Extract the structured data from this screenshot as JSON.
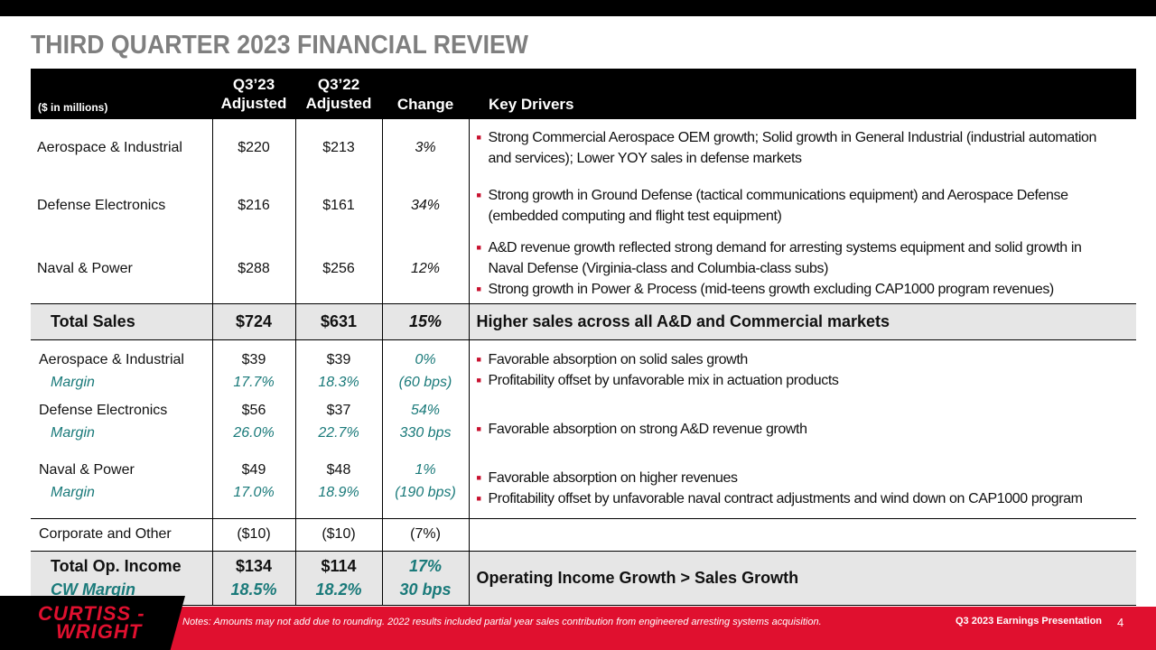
{
  "title": "THIRD QUARTER 2023 FINANCIAL REVIEW",
  "header": {
    "units": "($ in millions)",
    "q3_23_line1": "Q3’23",
    "q3_23_line2": "Adjusted",
    "q3_22_line1": "Q3’22",
    "q3_22_line2": "Adjusted",
    "change": "Change",
    "drivers": "Key Drivers"
  },
  "sales": [
    {
      "segment": "Aerospace & Industrial",
      "q3_23": "$220",
      "q3_22": "$213",
      "change": "3%",
      "drivers": [
        "Strong Commercial Aerospace OEM growth; Solid growth in General Industrial (industrial automation and services); Lower YOY sales in defense markets"
      ]
    },
    {
      "segment": "Defense Electronics",
      "q3_23": "$216",
      "q3_22": "$161",
      "change": "34%",
      "drivers": [
        "Strong growth in Ground Defense (tactical communications equipment) and Aerospace Defense (embedded computing and flight test equipment)"
      ]
    },
    {
      "segment": "Naval & Power",
      "q3_23": "$288",
      "q3_22": "$256",
      "change": "12%",
      "drivers": [
        "A&D revenue growth reflected strong demand for arresting systems equipment and solid growth in Naval Defense (Virginia-class and Columbia-class subs)",
        "Strong growth in Power & Process (mid-teens growth excluding CAP1000 program revenues)"
      ]
    }
  ],
  "total_sales": {
    "label": "Total Sales",
    "q3_23": "$724",
    "q3_22": "$631",
    "change": "15%",
    "driver": "Higher sales across all A&D  and Commercial markets"
  },
  "op_income": [
    {
      "segment": "Aerospace & Industrial",
      "margin_label": "Margin",
      "q3_23": "$39",
      "q3_23_margin": "17.7%",
      "q3_22": "$39",
      "q3_22_margin": "18.3%",
      "change": "0%",
      "change_margin": "(60 bps)",
      "drivers": [
        "Favorable absorption on solid sales growth",
        "Profitability  offset by unfavorable mix in actuation products"
      ]
    },
    {
      "segment": "Defense Electronics",
      "margin_label": "Margin",
      "q3_23": "$56",
      "q3_23_margin": "26.0%",
      "q3_22": "$37",
      "q3_22_margin": "22.7%",
      "change": "54%",
      "change_margin": "330 bps",
      "drivers": [
        "Favorable absorption on strong A&D revenue growth"
      ]
    },
    {
      "segment": "Naval & Power",
      "margin_label": "Margin",
      "q3_23": "$49",
      "q3_23_margin": "17.0%",
      "q3_22": "$48",
      "q3_22_margin": "18.9%",
      "change": "1%",
      "change_margin": "(190 bps)",
      "drivers": [
        "Favorable absorption on higher revenues",
        "Profitability  offset by unfavorable naval contract adjustments and wind down on CAP1000 program"
      ]
    }
  ],
  "corporate": {
    "label": "Corporate and Other",
    "q3_23": "($10)",
    "q3_22": "($10)",
    "change": "(7%)"
  },
  "total_op": {
    "label": "Total Op. Income",
    "margin_label": "CW Margin",
    "q3_23": "$134",
    "q3_23_margin": "18.5%",
    "q3_22": "$114",
    "q3_22_margin": "18.2%",
    "change": "17%",
    "change_margin": "30 bps",
    "driver": "Operating Income Growth > Sales Growth"
  },
  "footer": {
    "logo_line1": "CURTISS -",
    "logo_line2": "WRIGHT",
    "notes": "Notes: Amounts may not add due to rounding. 2022 results included partial year sales contribution from engineered arresting systems acquisition.",
    "presentation": "Q3 2023 Earnings Presentation",
    "page": "4"
  },
  "colors": {
    "brand_red": "#e0102f",
    "margin_teal": "#1a7a7a",
    "title_gray": "#7f7f7f"
  }
}
